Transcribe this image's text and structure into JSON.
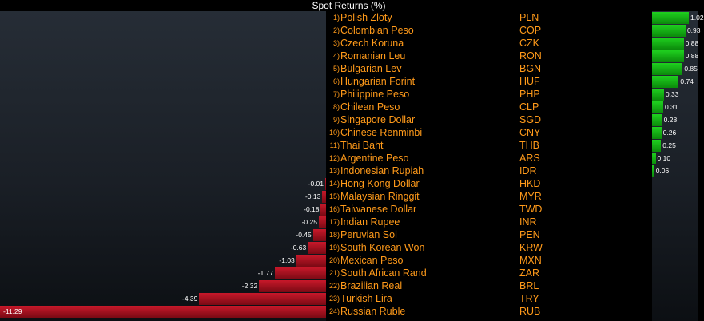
{
  "chart_data": {
    "type": "bar",
    "title": "Spot Returns (%)",
    "rows": [
      {
        "rank": "1)",
        "name": "Polish Zloty",
        "code": "PLN",
        "value": 1.02,
        "label": "1.02"
      },
      {
        "rank": "2)",
        "name": "Colombian Peso",
        "code": "COP",
        "value": 0.93,
        "label": "0.93"
      },
      {
        "rank": "3)",
        "name": "Czech Koruna",
        "code": "CZK",
        "value": 0.88,
        "label": "0.88"
      },
      {
        "rank": "4)",
        "name": "Romanian Leu",
        "code": "RON",
        "value": 0.88,
        "label": "0.88"
      },
      {
        "rank": "5)",
        "name": "Bulgarian Lev",
        "code": "BGN",
        "value": 0.85,
        "label": "0.85"
      },
      {
        "rank": "6)",
        "name": "Hungarian Forint",
        "code": "HUF",
        "value": 0.74,
        "label": "0.74"
      },
      {
        "rank": "7)",
        "name": "Philippine Peso",
        "code": "PHP",
        "value": 0.33,
        "label": "0.33"
      },
      {
        "rank": "8)",
        "name": "Chilean Peso",
        "code": "CLP",
        "value": 0.31,
        "label": "0.31"
      },
      {
        "rank": "9)",
        "name": "Singapore Dollar",
        "code": "SGD",
        "value": 0.28,
        "label": "0.28"
      },
      {
        "rank": "10)",
        "name": "Chinese Renminbi",
        "code": "CNY",
        "value": 0.26,
        "label": "0.26"
      },
      {
        "rank": "11)",
        "name": "Thai Baht",
        "code": "THB",
        "value": 0.25,
        "label": "0.25"
      },
      {
        "rank": "12)",
        "name": "Argentine Peso",
        "code": "ARS",
        "value": 0.1,
        "label": "0.10"
      },
      {
        "rank": "13)",
        "name": "Indonesian Rupiah",
        "code": "IDR",
        "value": 0.06,
        "label": "0.06"
      },
      {
        "rank": "14)",
        "name": "Hong Kong Dollar",
        "code": "HKD",
        "value": -0.01,
        "label": "-0.01"
      },
      {
        "rank": "15)",
        "name": "Malaysian Ringgit",
        "code": "MYR",
        "value": -0.13,
        "label": "-0.13"
      },
      {
        "rank": "16)",
        "name": "Taiwanese Dollar",
        "code": "TWD",
        "value": -0.18,
        "label": "-0.18"
      },
      {
        "rank": "17)",
        "name": "Indian Rupee",
        "code": "INR",
        "value": -0.25,
        "label": "-0.25"
      },
      {
        "rank": "18)",
        "name": "Peruvian Sol",
        "code": "PEN",
        "value": -0.45,
        "label": "-0.45"
      },
      {
        "rank": "19)",
        "name": "South Korean Won",
        "code": "KRW",
        "value": -0.63,
        "label": "-0.63"
      },
      {
        "rank": "20)",
        "name": "Mexican Peso",
        "code": "MXN",
        "value": -1.03,
        "label": "-1.03"
      },
      {
        "rank": "21)",
        "name": "South African Rand",
        "code": "ZAR",
        "value": -1.77,
        "label": "-1.77"
      },
      {
        "rank": "22)",
        "name": "Brazilian Real",
        "code": "BRL",
        "value": -2.32,
        "label": "-2.32"
      },
      {
        "rank": "23)",
        "name": "Turkish Lira",
        "code": "TRY",
        "value": -4.39,
        "label": "-4.39"
      },
      {
        "rank": "24)",
        "name": "Russian Ruble",
        "code": "RUB",
        "value": -11.29,
        "label": "-11.29"
      }
    ],
    "colors": {
      "positive": "#14b814",
      "negative": "#b0101e",
      "text_label": "#ff9a1a"
    }
  }
}
